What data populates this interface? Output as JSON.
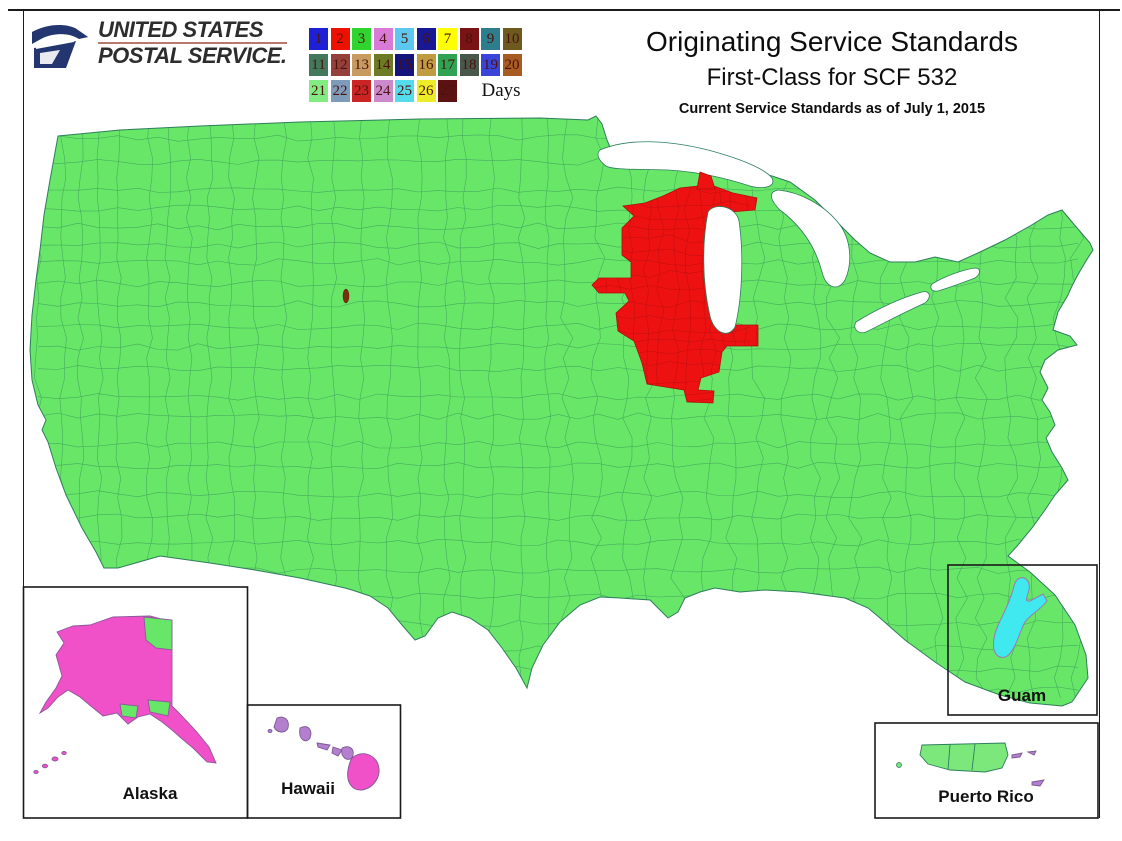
{
  "header": {
    "logo_line1": "UNITED STATES",
    "logo_line2": "POSTAL SERVICE.",
    "title_main": "Originating Service Standards",
    "title_sub": "First-Class for SCF 532",
    "title_date": "Current Service Standards as of July 1, 2015"
  },
  "legend": {
    "label": "Days",
    "items": [
      {
        "day": 1,
        "color": "#1f1fd6"
      },
      {
        "day": 2,
        "color": "#ee1100"
      },
      {
        "day": 3,
        "color": "#2fd42f"
      },
      {
        "day": 4,
        "color": "#da7ad8"
      },
      {
        "day": 5,
        "color": "#5cc8f0"
      },
      {
        "day": 6,
        "color": "#181894"
      },
      {
        "day": 7,
        "color": "#ffff00"
      },
      {
        "day": 8,
        "color": "#7a1414"
      },
      {
        "day": 9,
        "color": "#2e7d8c"
      },
      {
        "day": 10,
        "color": "#6e5a1e"
      },
      {
        "day": 11,
        "color": "#42795c"
      },
      {
        "day": 12,
        "color": "#96403c"
      },
      {
        "day": 13,
        "color": "#c79a5f"
      },
      {
        "day": 14,
        "color": "#6d7c24"
      },
      {
        "day": 15,
        "color": "#14147c"
      },
      {
        "day": 16,
        "color": "#bf9c42"
      },
      {
        "day": 17,
        "color": "#2fa352"
      },
      {
        "day": 18,
        "color": "#49584a"
      },
      {
        "day": 19,
        "color": "#3a44d8"
      },
      {
        "day": 20,
        "color": "#a85c22"
      },
      {
        "day": 21,
        "color": "#82ec82"
      },
      {
        "day": 22,
        "color": "#7e9cba"
      },
      {
        "day": 23,
        "color": "#cc2424"
      },
      {
        "day": 24,
        "color": "#cc8acc"
      },
      {
        "day": 25,
        "color": "#54dcec"
      },
      {
        "day": 26,
        "color": "#ecec28"
      },
      {
        "day": 27,
        "color": "#5c1212"
      }
    ]
  },
  "insets": {
    "alaska": "Alaska",
    "hawaii": "Hawaii",
    "guam": "Guam",
    "puerto_rico": "Puerto Rico"
  },
  "map": {
    "colors": {
      "land_green": "#67e667",
      "boundary_line": "#2e7d5c",
      "red_zone": "#ee1111",
      "red_boundary": "#a51010",
      "alaska_pink": "#f050c8",
      "islands_purple": "#b57fd0",
      "guam_cyan": "#40e8f0",
      "pr_green": "#7ce87c",
      "water_white": "#ffffff",
      "usps_blue": "#24366f"
    },
    "regions": [
      {
        "area": "Contiguous US (most ZIP zones)",
        "days": 3,
        "fill": "green"
      },
      {
        "area": "Wisconsin / Upper Michigan / northern Illinois zone around SCF 532",
        "days": 2,
        "fill": "red"
      },
      {
        "area": "Alaska (most zones)",
        "days": 4,
        "fill": "pink"
      },
      {
        "area": "Alaska (some zones)",
        "days": 3,
        "fill": "green"
      },
      {
        "area": "Hawaii",
        "days": 4,
        "fill": "pink"
      },
      {
        "area": "Guam",
        "days": 5,
        "fill": "cyan"
      },
      {
        "area": "Puerto Rico (main island)",
        "days": 3,
        "fill": "green"
      }
    ]
  }
}
